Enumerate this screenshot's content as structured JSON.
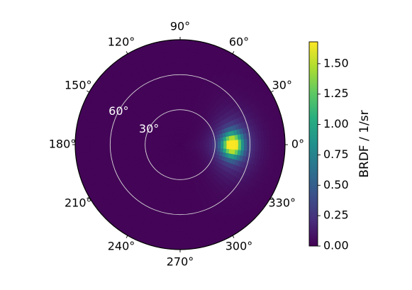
{
  "chart_data": {
    "type": "heatmap",
    "projection": "polar",
    "title": "",
    "angular_ticks_deg": [
      0,
      30,
      60,
      90,
      120,
      150,
      180,
      210,
      240,
      270,
      300,
      330
    ],
    "angular_tick_labels": [
      "0°",
      "30°",
      "60°",
      "90°",
      "120°",
      "150°",
      "180°",
      "210°",
      "240°",
      "270°",
      "300°",
      "330°"
    ],
    "radial_ticks_deg": [
      30,
      60
    ],
    "radial_tick_labels": [
      "30°",
      "60°"
    ],
    "radial_label_angle_deg": 150,
    "radial_range_deg": [
      0,
      90
    ],
    "radial_grid": true,
    "angular_grid": false,
    "data_extent_note": "",
    "peak": {
      "azimuth_deg": 0,
      "zenith_deg": 45,
      "value": 1.68
    },
    "background_value": 0.02,
    "colorbar": {
      "label": "BRDF / 1/sr",
      "colormap": "viridis",
      "vmin": 0.0,
      "vmax": 1.68,
      "ticks": [
        0.0,
        0.25,
        0.5,
        0.75,
        1.0,
        1.25,
        1.5
      ],
      "tick_labels": [
        "0.00",
        "0.25",
        "0.50",
        "0.75",
        "1.00",
        "1.25",
        "1.50"
      ]
    }
  }
}
